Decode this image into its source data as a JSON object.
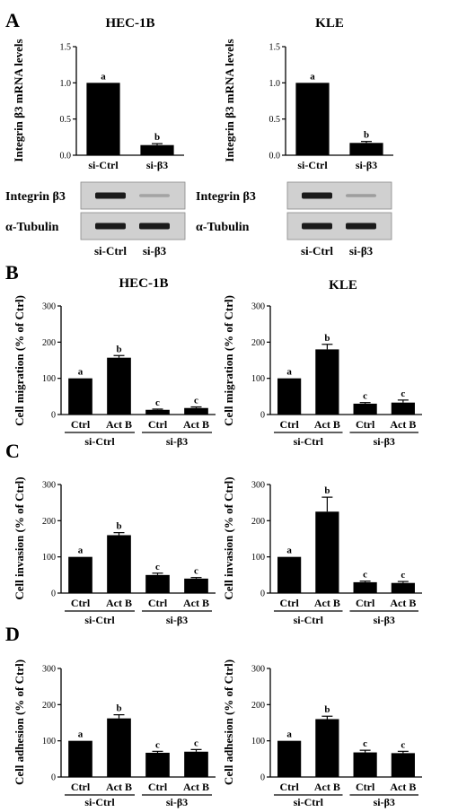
{
  "panels": [
    "A",
    "B",
    "C",
    "D"
  ],
  "colors": {
    "bar": "#000000",
    "blot_bg": "#d0d0d0",
    "band": "#1a1a1a"
  },
  "western_blot": {
    "row_labels": [
      "Integrin β3",
      "α-Tubulin"
    ],
    "lane_labels": [
      "si-Ctrl",
      "si-β3"
    ],
    "cells": [
      {
        "cell_line": "HEC-1B",
        "integrin_band_intensity": [
          1.0,
          0.12
        ],
        "tubulin_band_intensity": [
          1.0,
          1.0
        ]
      },
      {
        "cell_line": "KLE",
        "integrin_band_intensity": [
          1.0,
          0.15
        ],
        "tubulin_band_intensity": [
          1.0,
          1.0
        ]
      }
    ]
  },
  "chart_data": [
    {
      "type": "bar",
      "panel": "A",
      "title": "HEC-1B",
      "ylabel": "Integrin β3 mRNA levels",
      "ylim": [
        0,
        1.5
      ],
      "yticks": [
        "0.0",
        "0.5",
        "1.0",
        "1.5"
      ],
      "categories": [
        "si-Ctrl",
        "si-β3"
      ],
      "values": [
        1.0,
        0.14
      ],
      "errors": [
        0,
        0.02
      ],
      "letters": [
        "a",
        "b"
      ]
    },
    {
      "type": "bar",
      "panel": "A",
      "title": "KLE",
      "ylabel": "Integrin β3 mRNA levels",
      "ylim": [
        0,
        1.5
      ],
      "yticks": [
        "0.0",
        "0.5",
        "1.0",
        "1.5"
      ],
      "categories": [
        "si-Ctrl",
        "si-β3"
      ],
      "values": [
        1.0,
        0.17
      ],
      "errors": [
        0,
        0.02
      ],
      "letters": [
        "a",
        "b"
      ]
    },
    {
      "type": "bar",
      "panel": "B",
      "title": "HEC-1B",
      "ylabel": "Cell migration (% of Ctrl)",
      "ylim": [
        0,
        300
      ],
      "yticks": [
        "0",
        "100",
        "200",
        "300"
      ],
      "categories": [
        "Ctrl",
        "Act B",
        "Ctrl",
        "Act B"
      ],
      "groups": [
        "si-Ctrl",
        "si-β3"
      ],
      "values": [
        100,
        157,
        13,
        18
      ],
      "errors": [
        0,
        6,
        2,
        3
      ],
      "letters": [
        "a",
        "b",
        "c",
        "c"
      ]
    },
    {
      "type": "bar",
      "panel": "B",
      "title": "KLE",
      "ylabel": "Cell migration (% of Ctrl)",
      "ylim": [
        0,
        300
      ],
      "yticks": [
        "0",
        "100",
        "200",
        "300"
      ],
      "categories": [
        "Ctrl",
        "Act B",
        "Ctrl",
        "Act B"
      ],
      "groups": [
        "si-Ctrl",
        "si-β3"
      ],
      "values": [
        100,
        180,
        30,
        33
      ],
      "errors": [
        0,
        14,
        3,
        7
      ],
      "letters": [
        "a",
        "b",
        "c",
        "c"
      ]
    },
    {
      "type": "bar",
      "panel": "C",
      "title": "",
      "ylabel": "Cell invasion (% of Ctrl)",
      "ylim": [
        0,
        300
      ],
      "yticks": [
        "0",
        "100",
        "200",
        "300"
      ],
      "categories": [
        "Ctrl",
        "Act B",
        "Ctrl",
        "Act B"
      ],
      "groups": [
        "si-Ctrl",
        "si-β3"
      ],
      "values": [
        100,
        160,
        50,
        40
      ],
      "errors": [
        0,
        7,
        5,
        3
      ],
      "letters": [
        "a",
        "b",
        "c",
        "c"
      ]
    },
    {
      "type": "bar",
      "panel": "C",
      "title": "",
      "ylabel": "Cell invasion (% of Ctrl)",
      "ylim": [
        0,
        300
      ],
      "yticks": [
        "0",
        "100",
        "200",
        "300"
      ],
      "categories": [
        "Ctrl",
        "Act B",
        "Ctrl",
        "Act B"
      ],
      "groups": [
        "si-Ctrl",
        "si-β3"
      ],
      "values": [
        100,
        225,
        30,
        28
      ],
      "errors": [
        0,
        40,
        3,
        4
      ],
      "letters": [
        "a",
        "b",
        "c",
        "c"
      ]
    },
    {
      "type": "bar",
      "panel": "D",
      "title": "",
      "ylabel": "Cell adhesion (% of Ctrl)",
      "ylim": [
        0,
        300
      ],
      "yticks": [
        "0",
        "100",
        "200",
        "300"
      ],
      "categories": [
        "Ctrl",
        "Act B",
        "Ctrl",
        "Act B"
      ],
      "groups": [
        "si-Ctrl",
        "si-β3"
      ],
      "values": [
        100,
        162,
        67,
        70
      ],
      "errors": [
        0,
        10,
        4,
        6
      ],
      "letters": [
        "a",
        "b",
        "c",
        "c"
      ]
    },
    {
      "type": "bar",
      "panel": "D",
      "title": "",
      "ylabel": "Cell adhesion (% of Ctrl)",
      "ylim": [
        0,
        300
      ],
      "yticks": [
        "0",
        "100",
        "200",
        "300"
      ],
      "categories": [
        "Ctrl",
        "Act B",
        "Ctrl",
        "Act B"
      ],
      "groups": [
        "si-Ctrl",
        "si-β3"
      ],
      "values": [
        100,
        160,
        68,
        66
      ],
      "errors": [
        0,
        8,
        6,
        5
      ],
      "letters": [
        "a",
        "b",
        "c",
        "c"
      ]
    }
  ]
}
